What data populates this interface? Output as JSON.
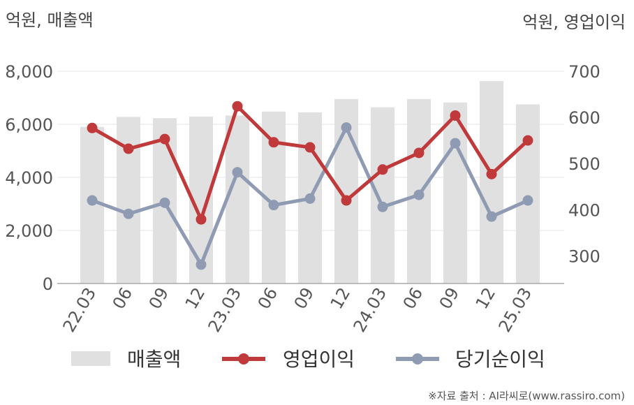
{
  "chart_data": {
    "type": "bar",
    "title": "",
    "left_axis_label": "억원, 매출액",
    "right_axis_label": "억원, 영업이익",
    "categories": [
      "22.03",
      "06",
      "09",
      "12",
      "23.03",
      "06",
      "09",
      "12",
      "24.03",
      "06",
      "09",
      "12",
      "25.03"
    ],
    "left_ylim": [
      0,
      8000
    ],
    "left_ticks": [
      "0",
      "2,000",
      "4,000",
      "6,000",
      "8,000"
    ],
    "right_ylim": [
      240,
      700
    ],
    "right_ticks": [
      "300",
      "400",
      "500",
      "600",
      "700"
    ],
    "grid": true,
    "legend_position": "bottom",
    "series": [
      {
        "name": "매출액",
        "kind": "bar",
        "axis": "left",
        "color": "#e0e0e0",
        "values": [
          5900,
          6280,
          6230,
          6290,
          6330,
          6480,
          6450,
          6950,
          6640,
          6950,
          6820,
          7630,
          6750
        ]
      },
      {
        "name": "영업이익",
        "kind": "line",
        "axis": "right",
        "color": "#c0393b",
        "values": [
          577,
          532,
          553,
          379,
          624,
          546,
          535,
          420,
          487,
          523,
          604,
          477,
          550
        ]
      },
      {
        "name": "당기순이익",
        "kind": "line",
        "axis": "right",
        "color": "#8f9bb3",
        "values": [
          420,
          391,
          415,
          281,
          481,
          410,
          424,
          578,
          406,
          432,
          544,
          385,
          420
        ]
      }
    ]
  },
  "footer": {
    "source": "※자료 출처 : AI라씨로(www.rassiro.com)"
  }
}
